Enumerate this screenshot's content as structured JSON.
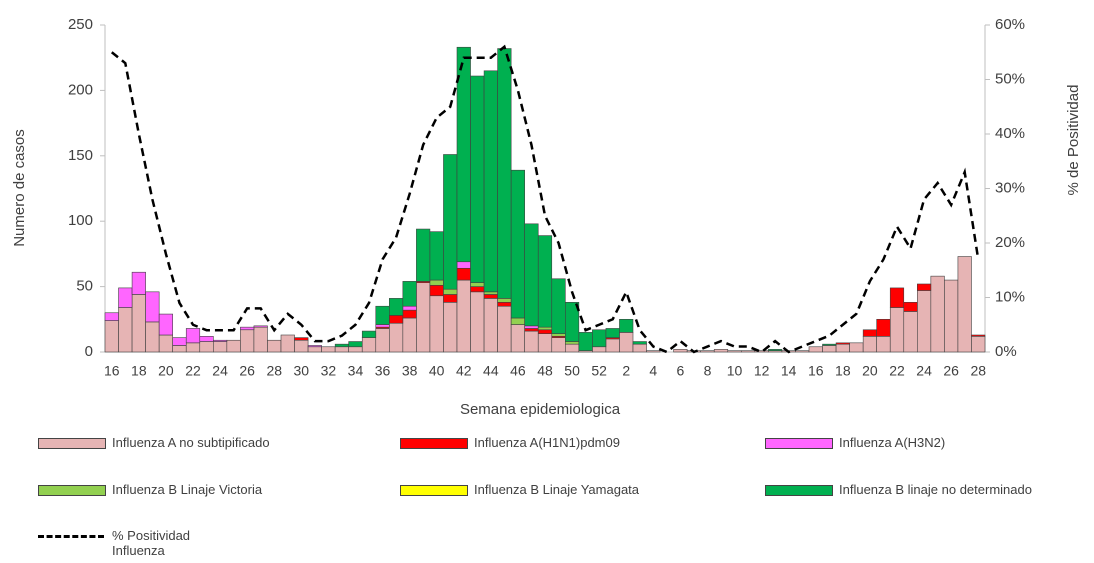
{
  "chart_data": {
    "type": "bar",
    "stacked": true,
    "xlabel": "Semana epidemiologica",
    "ylabel": "Numero de casos",
    "y2label": "% de Positividad",
    "categories": [
      "16",
      null,
      "18",
      null,
      "20",
      null,
      "22",
      null,
      "24",
      null,
      "26",
      null,
      "28",
      null,
      "30",
      null,
      "32",
      null,
      "34",
      null,
      "36",
      null,
      "38",
      null,
      "40",
      null,
      "42",
      null,
      "44",
      null,
      "46",
      null,
      "48",
      null,
      "50",
      null,
      "52",
      null,
      "2",
      null,
      "4",
      null,
      "6",
      null,
      "8",
      null,
      "10",
      null,
      "12",
      null,
      "14",
      null,
      "16",
      null,
      "18",
      null,
      "20",
      null,
      "22",
      null,
      "24",
      null,
      "26",
      null,
      "28"
    ],
    "ylim": [
      0,
      250
    ],
    "yticks": [
      0,
      50,
      100,
      150,
      200,
      250
    ],
    "y2lim": [
      0,
      60
    ],
    "y2ticks": [
      {
        "value": 0,
        "label": "0%"
      },
      {
        "value": 10,
        "label": "10%"
      },
      {
        "value": 20,
        "label": "20%"
      },
      {
        "value": 30,
        "label": "30%"
      },
      {
        "value": 40,
        "label": "40%"
      },
      {
        "value": 50,
        "label": "50%"
      },
      {
        "value": 60,
        "label": "60%"
      }
    ],
    "series": [
      {
        "name": "Influenza A no subtipificado",
        "type": "bar",
        "color": "#e6b4b4",
        "values": [
          24,
          34,
          44,
          23,
          13,
          5,
          7,
          8,
          8,
          9,
          17,
          19,
          9,
          13,
          9,
          4,
          4,
          4,
          4,
          11,
          18,
          22,
          26,
          53,
          43,
          38,
          55,
          46,
          41,
          35,
          21,
          16,
          14,
          11,
          6,
          1,
          4,
          10,
          15,
          6,
          1,
          0,
          2,
          1,
          1,
          2,
          1,
          1,
          1,
          1,
          1,
          1,
          4,
          5,
          6,
          7,
          12,
          12,
          34,
          31,
          47,
          58,
          55,
          73,
          12
        ]
      },
      {
        "name": "Influenza A(H1N1)pdm09",
        "type": "bar",
        "color": "#ff0000",
        "values": [
          0,
          0,
          0,
          0,
          0,
          0,
          0,
          0,
          0,
          0,
          0,
          0,
          0,
          0,
          2,
          0,
          0,
          0,
          0,
          0,
          1,
          6,
          6,
          1,
          8,
          6,
          9,
          4,
          3,
          3,
          0,
          2,
          3,
          1,
          0,
          0,
          0,
          1,
          0,
          0,
          0,
          0,
          0,
          0,
          0,
          0,
          0,
          0,
          0,
          0,
          0,
          0,
          0,
          0,
          1,
          0,
          5,
          13,
          15,
          7,
          5,
          0,
          0,
          0,
          1
        ]
      },
      {
        "name": "Influenza A(H3N2)",
        "type": "bar",
        "color": "#ff66ff",
        "values": [
          6,
          15,
          17,
          23,
          16,
          6,
          11,
          4,
          1,
          0,
          2,
          1,
          0,
          0,
          0,
          1,
          0,
          0,
          0,
          0,
          2,
          0,
          3,
          0,
          0,
          0,
          5,
          0,
          0,
          0,
          0,
          2,
          0,
          0,
          0,
          0,
          0,
          0,
          0,
          0,
          0,
          0,
          0,
          0,
          0,
          0,
          0,
          0,
          0,
          0,
          0,
          0,
          0,
          0,
          0,
          0,
          0,
          0,
          0,
          0,
          0,
          0,
          0,
          0,
          0
        ]
      },
      {
        "name": "Influenza B Linaje Victoria",
        "type": "bar",
        "color": "#92d050",
        "values": [
          0,
          0,
          0,
          0,
          0,
          0,
          0,
          0,
          0,
          0,
          0,
          0,
          0,
          0,
          0,
          0,
          0,
          0,
          0,
          0,
          0,
          0,
          0,
          0,
          4,
          4,
          0,
          3,
          2,
          3,
          5,
          0,
          2,
          2,
          2,
          0,
          0,
          0,
          0,
          0,
          0,
          0,
          0,
          0,
          0,
          0,
          0,
          0,
          0,
          0,
          0,
          0,
          0,
          0,
          0,
          0,
          0,
          0,
          0,
          0,
          0,
          0,
          0,
          0,
          0
        ]
      },
      {
        "name": "Influenza B Linaje Yamagata",
        "type": "bar",
        "color": "#ffff00",
        "values": [
          0,
          0,
          0,
          0,
          0,
          0,
          0,
          0,
          0,
          0,
          0,
          0,
          0,
          0,
          0,
          0,
          0,
          0,
          0,
          0,
          0,
          0,
          0,
          0,
          0,
          0,
          0,
          0,
          0,
          0,
          0,
          0,
          0,
          0,
          0,
          0,
          0,
          0,
          0,
          0,
          0,
          0,
          0,
          0,
          0,
          0,
          0,
          0,
          0,
          0,
          0,
          0,
          0,
          0,
          0,
          0,
          0,
          0,
          0,
          0,
          0,
          0,
          0,
          0,
          0
        ]
      },
      {
        "name": "Influenza B linaje no determinado",
        "type": "bar",
        "color": "#00b050",
        "values": [
          0,
          0,
          0,
          0,
          0,
          0,
          0,
          0,
          0,
          0,
          0,
          0,
          0,
          0,
          0,
          0,
          0,
          2,
          4,
          5,
          14,
          13,
          19,
          40,
          37,
          103,
          164,
          158,
          169,
          191,
          113,
          78,
          70,
          42,
          30,
          14,
          13,
          7,
          10,
          2,
          0,
          0,
          0,
          0,
          0,
          0,
          0,
          0,
          0,
          1,
          0,
          0,
          0,
          1,
          0,
          0,
          0,
          0,
          0,
          0,
          0,
          0,
          0,
          0,
          0
        ]
      },
      {
        "name": "% Positividad Influenza",
        "type": "line",
        "axis": "y2",
        "color": "#000000",
        "values": [
          55,
          53,
          40,
          28,
          18,
          9,
          5,
          4,
          4,
          4,
          8,
          8,
          4,
          7,
          5,
          2,
          2,
          3,
          5,
          9,
          17,
          21,
          29,
          38,
          43,
          45,
          54,
          54,
          54,
          56,
          48,
          38,
          25,
          20,
          11,
          4,
          5,
          6,
          11,
          4,
          1,
          0,
          2,
          0,
          1,
          2,
          1,
          1,
          0,
          2,
          0,
          1,
          2,
          3,
          5,
          7,
          13,
          17,
          23,
          19,
          28,
          31,
          27,
          33,
          17
        ]
      }
    ]
  }
}
